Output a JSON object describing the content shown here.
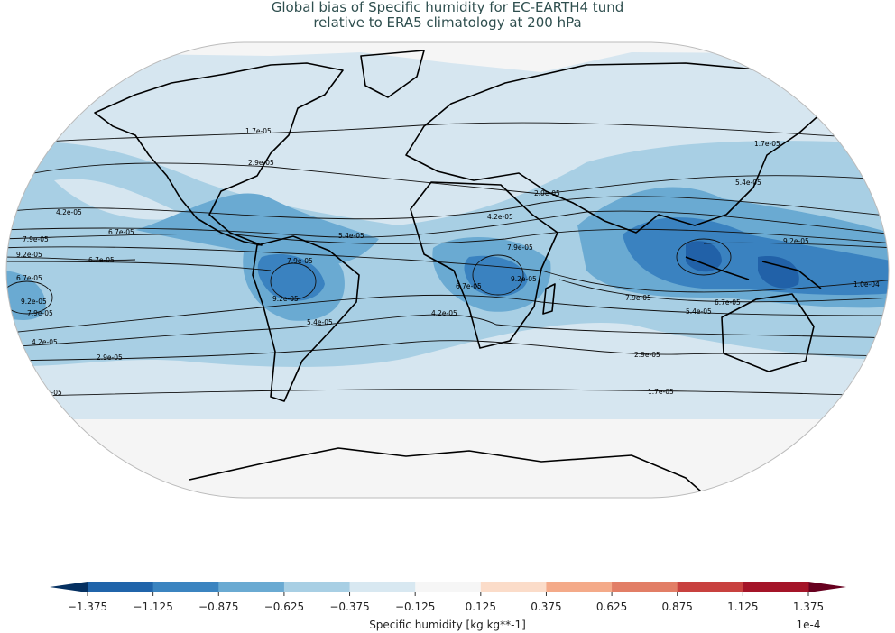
{
  "title": {
    "line1": "Global bias of Specific humidity for EC-EARTH4 tund",
    "line2": "relative to ERA5 climatology at 200 hPa"
  },
  "map": {
    "projection": "Robinson",
    "fill_colors": {
      "near_zero": "#f5f5f5",
      "light": "#d6e6f0",
      "medium": "#a8cfe4",
      "strong": "#6aaad2",
      "stronger": "#3a82c0",
      "strongest": "#2161a8"
    },
    "contour_labels": {
      "c17": "1.7e-05",
      "c29": "2.9e-05",
      "c42": "4.2e-05",
      "c54": "5.4e-05",
      "c67": "6.7e-05",
      "c79": "7.9e-05",
      "c92": "9.2e-05",
      "c100": "1.0e-04"
    }
  },
  "colorbar": {
    "label": "Specific humidity [kg kg**-1]",
    "scale": "1e-4",
    "ticks": [
      "−1.375",
      "−1.125",
      "−0.875",
      "−0.625",
      "−0.375",
      "−0.125",
      "0.125",
      "0.375",
      "0.625",
      "0.875",
      "1.125",
      "1.375"
    ],
    "under_color": "#053061",
    "over_color": "#67001f",
    "colors": [
      "#2064aa",
      "#3b84c0",
      "#6aaad2",
      "#a8cfe4",
      "#d8e8f1",
      "#f6f6f6",
      "#fbdcc9",
      "#f4aa89",
      "#e27e66",
      "#c8413f",
      "#a41428"
    ]
  }
}
